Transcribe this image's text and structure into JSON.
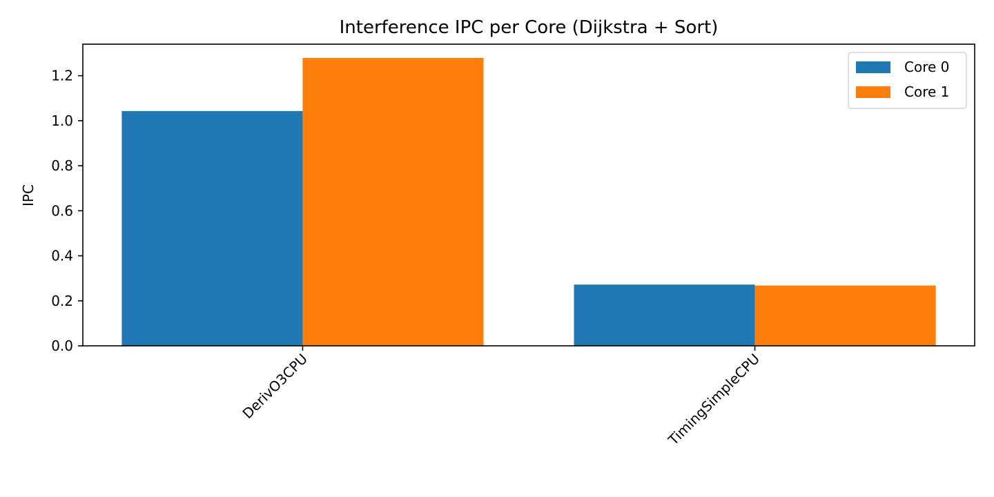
{
  "chart_data": {
    "type": "bar",
    "title": "Interference IPC per Core (Dijkstra + Sort)",
    "xlabel": "",
    "ylabel": "IPC",
    "categories": [
      "DerivO3CPU",
      "TimingSimpleCPU"
    ],
    "series": [
      {
        "name": "Core 0",
        "color": "#1f77b4",
        "values": [
          1.043,
          0.272
        ]
      },
      {
        "name": "Core 1",
        "color": "#ff7f0e",
        "values": [
          1.279,
          0.268
        ]
      }
    ],
    "ylim": [
      0,
      1.34
    ],
    "yticks": [
      "0.0",
      "0.2",
      "0.4",
      "0.6",
      "0.8",
      "1.0",
      "1.2"
    ],
    "grid": false,
    "legend_position": "top-right",
    "xtick_rotation": "45"
  }
}
